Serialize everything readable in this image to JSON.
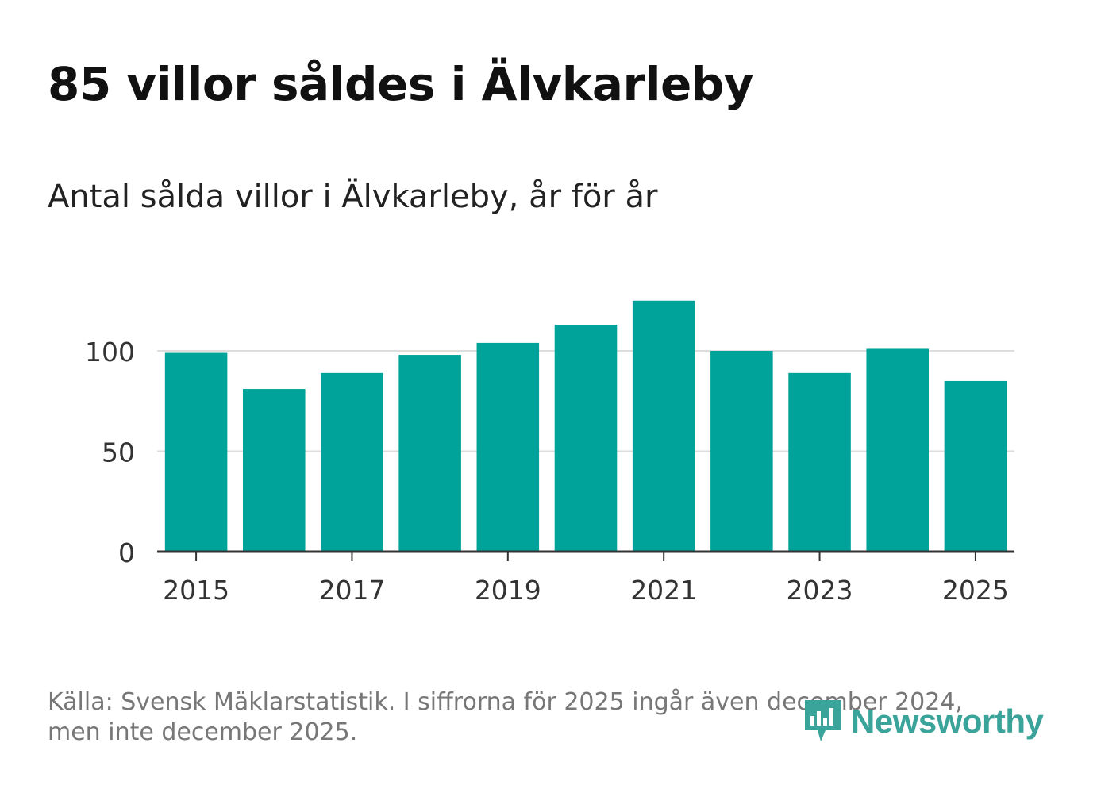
{
  "title": "85 villor såldes i Älvkarleby",
  "subtitle": "Antal sålda villor i Älvkarleby, år för år",
  "footer": {
    "line1": "Källa: Svensk Mäklarstatistik. I siffrorna för 2025 ingår även december 2024,",
    "line2": "men inte december 2025."
  },
  "logo": {
    "text": "Newsworthy",
    "icon": "newsworthy-logo-icon"
  },
  "colors": {
    "bar": "#00a39a",
    "grid": "#dddddd",
    "axis": "#333333",
    "logo": "#3aa39a"
  },
  "chart_data": {
    "type": "bar",
    "title": "85 villor såldes i Älvkarleby",
    "subtitle": "Antal sålda villor i Älvkarleby, år för år",
    "xlabel": "",
    "ylabel": "",
    "categories": [
      2015,
      2016,
      2017,
      2018,
      2019,
      2020,
      2021,
      2022,
      2023,
      2024,
      2025
    ],
    "values": [
      99,
      81,
      89,
      98,
      104,
      113,
      125,
      100,
      89,
      101,
      85
    ],
    "x_ticks": [
      "2015",
      "2017",
      "2019",
      "2021",
      "2023",
      "2025"
    ],
    "y_ticks": [
      0,
      50,
      100
    ],
    "ylim": [
      0,
      125
    ],
    "grid": true,
    "legend": "none"
  }
}
